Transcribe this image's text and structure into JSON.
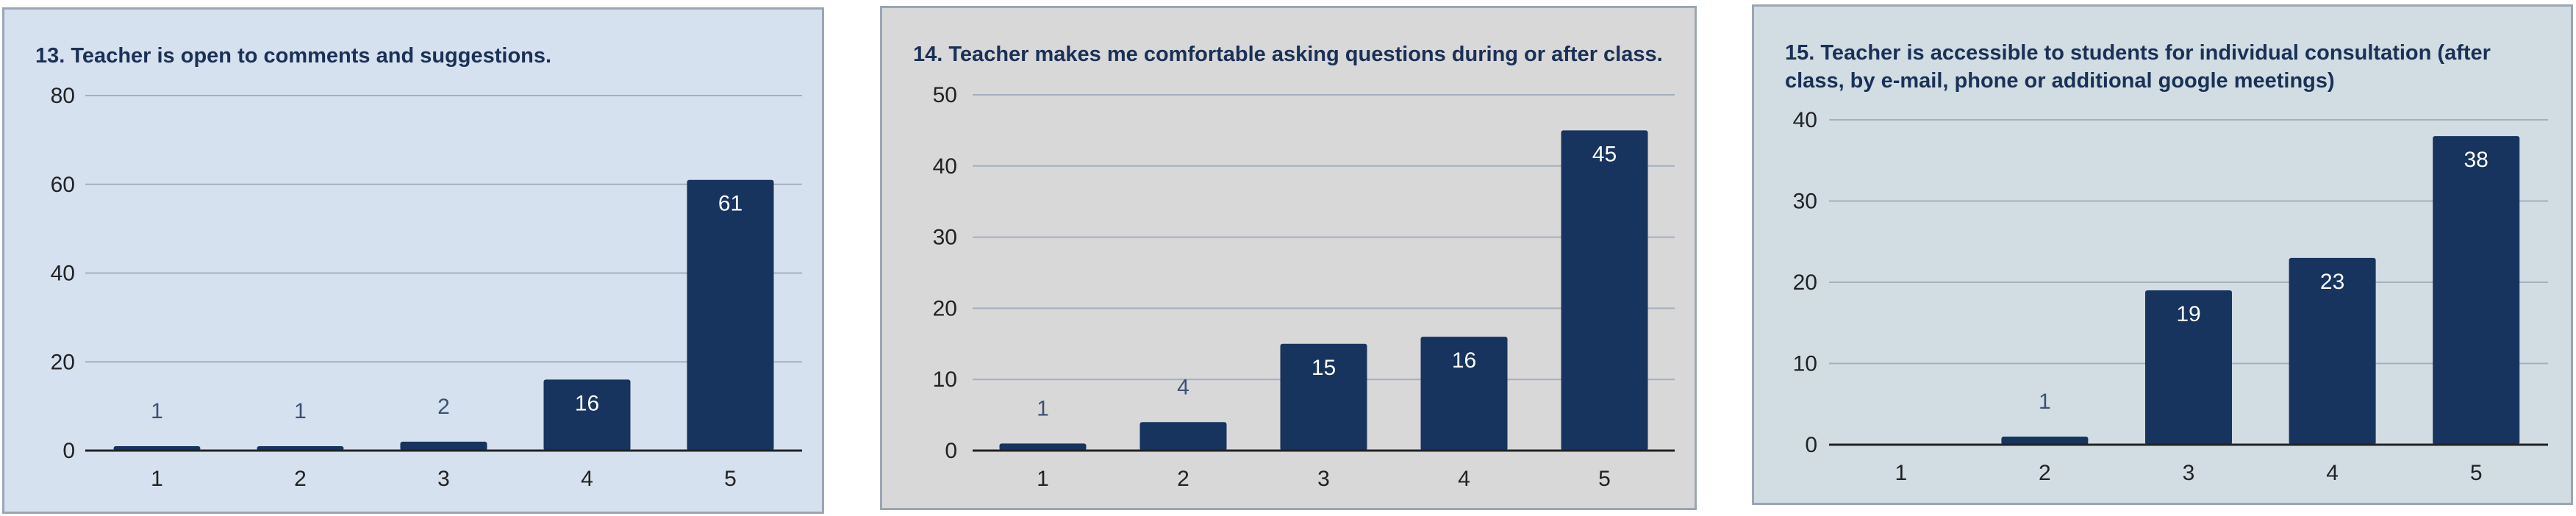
{
  "colors": {
    "bar": "#17345e",
    "grid": "#a6afbd",
    "axis": "#222222",
    "tick_text": "#222222",
    "label_outside": "#3c5275",
    "label_inside": "#ffffff",
    "panel_backgrounds": [
      "#d5e1ef",
      "#d8d8d8",
      "#d1dde3"
    ]
  },
  "chart_data": [
    {
      "type": "bar",
      "title": "13. Teacher is open to comments and suggestions.",
      "categories": [
        "1",
        "2",
        "3",
        "4",
        "5"
      ],
      "values": [
        1,
        1,
        2,
        16,
        61
      ],
      "yticks": [
        0,
        20,
        40,
        60,
        80
      ],
      "ylim": [
        0,
        80
      ],
      "grid": true,
      "legend": "none"
    },
    {
      "type": "bar",
      "title": "14. Teacher makes me comfortable asking questions during or after class.",
      "categories": [
        "1",
        "2",
        "3",
        "4",
        "5"
      ],
      "values": [
        1,
        4,
        15,
        16,
        45
      ],
      "yticks": [
        0,
        10,
        20,
        30,
        40,
        50
      ],
      "ylim": [
        0,
        50
      ],
      "grid": true,
      "legend": "none"
    },
    {
      "type": "bar",
      "title": "15. Teacher is accessible to students for individual consultation (after class, by e-mail, phone or additional google meetings)",
      "categories": [
        "1",
        "2",
        "3",
        "4",
        "5"
      ],
      "values": [
        0,
        1,
        19,
        23,
        38
      ],
      "value_labels": [
        "",
        "1",
        "19",
        "23",
        "38"
      ],
      "yticks": [
        0,
        10,
        20,
        30,
        40
      ],
      "ylim": [
        0,
        40
      ],
      "grid": true,
      "legend": "none"
    }
  ]
}
